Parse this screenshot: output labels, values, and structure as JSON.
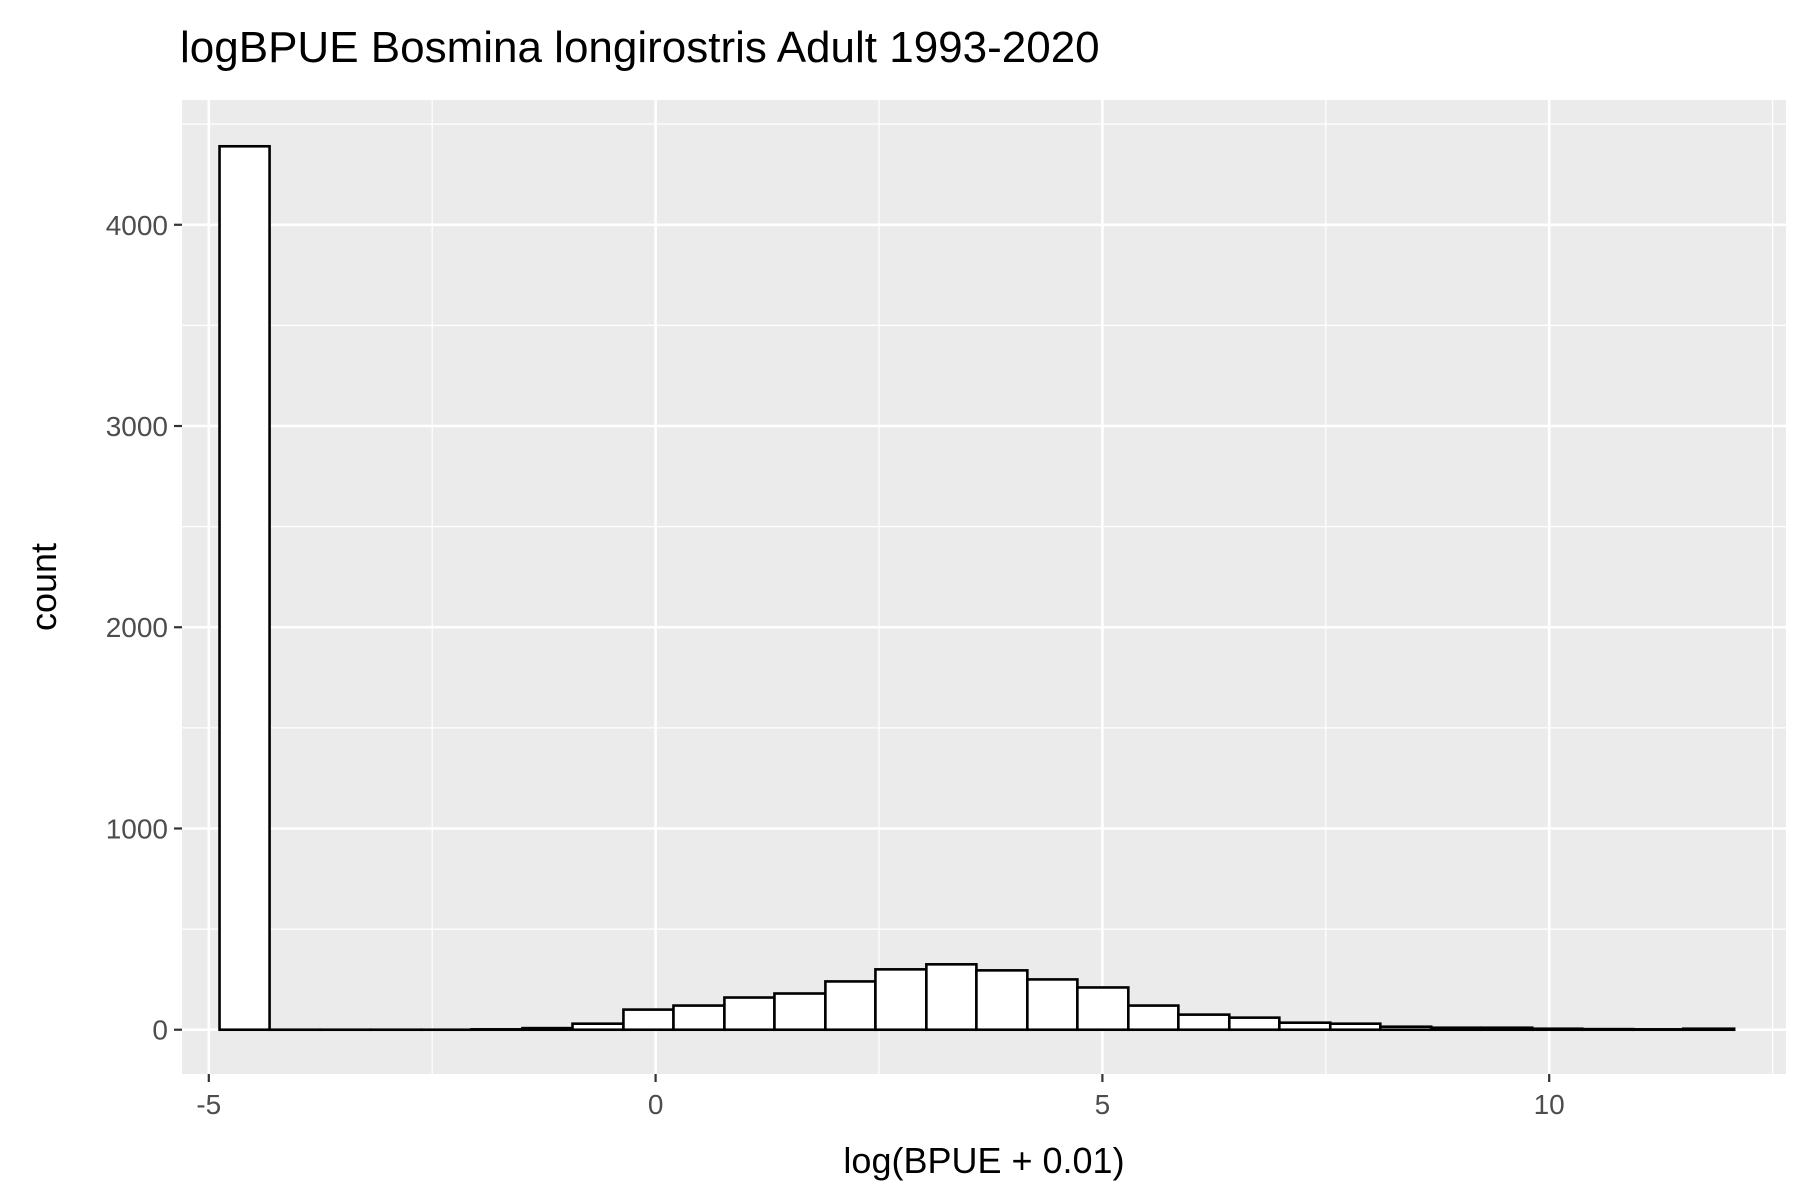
{
  "chart_data": {
    "type": "histogram",
    "title": "logBPUE Bosmina longirostris Adult  1993-2020",
    "xlabel": "log(BPUE + 0.01)",
    "ylabel": "count",
    "xlim": [
      -5.3,
      12.65
    ],
    "ylim": [
      -220,
      4620
    ],
    "x_ticks": [
      -5,
      0,
      5,
      10
    ],
    "y_ticks": [
      0,
      1000,
      2000,
      3000,
      4000
    ],
    "x_tick_labels": [
      "-5",
      "0",
      "5",
      "10"
    ],
    "y_tick_labels": [
      "0",
      "1000",
      "2000",
      "3000",
      "4000"
    ],
    "grid": true,
    "colors": {
      "panel_background": "#ebebeb",
      "grid_line": "#ffffff",
      "bar_fill": "#ffffff",
      "bar_outline": "#000000",
      "tick_mark": "#333333"
    },
    "bin_width": 0.565,
    "bins": [
      {
        "start": -4.88,
        "end": -4.32,
        "count": 4390
      },
      {
        "start": -4.32,
        "end": -3.75,
        "count": 0
      },
      {
        "start": -3.75,
        "end": -3.19,
        "count": 0
      },
      {
        "start": -3.19,
        "end": -2.62,
        "count": 0
      },
      {
        "start": -2.62,
        "end": -2.06,
        "count": 0
      },
      {
        "start": -2.06,
        "end": -1.49,
        "count": 2
      },
      {
        "start": -1.49,
        "end": -0.93,
        "count": 8
      },
      {
        "start": -0.93,
        "end": -0.36,
        "count": 30
      },
      {
        "start": -0.36,
        "end": 0.2,
        "count": 100
      },
      {
        "start": 0.2,
        "end": 0.77,
        "count": 120
      },
      {
        "start": 0.77,
        "end": 1.33,
        "count": 160
      },
      {
        "start": 1.33,
        "end": 1.9,
        "count": 180
      },
      {
        "start": 1.9,
        "end": 2.46,
        "count": 240
      },
      {
        "start": 2.46,
        "end": 3.03,
        "count": 300
      },
      {
        "start": 3.03,
        "end": 3.59,
        "count": 325
      },
      {
        "start": 3.59,
        "end": 4.16,
        "count": 295
      },
      {
        "start": 4.16,
        "end": 4.72,
        "count": 250
      },
      {
        "start": 4.72,
        "end": 5.29,
        "count": 210
      },
      {
        "start": 5.29,
        "end": 5.85,
        "count": 120
      },
      {
        "start": 5.85,
        "end": 6.42,
        "count": 75
      },
      {
        "start": 6.42,
        "end": 6.98,
        "count": 60
      },
      {
        "start": 6.98,
        "end": 7.55,
        "count": 35
      },
      {
        "start": 7.55,
        "end": 8.11,
        "count": 30
      },
      {
        "start": 8.11,
        "end": 8.68,
        "count": 15
      },
      {
        "start": 8.68,
        "end": 9.24,
        "count": 10
      },
      {
        "start": 9.24,
        "end": 9.81,
        "count": 10
      },
      {
        "start": 9.81,
        "end": 10.37,
        "count": 5
      },
      {
        "start": 10.37,
        "end": 10.94,
        "count": 3
      },
      {
        "start": 10.94,
        "end": 11.5,
        "count": 2
      },
      {
        "start": 11.5,
        "end": 12.07,
        "count": 5
      }
    ]
  }
}
